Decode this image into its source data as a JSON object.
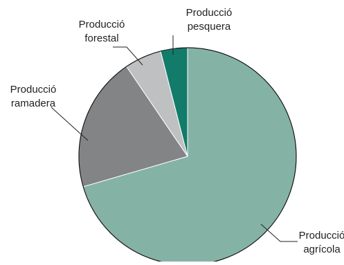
{
  "chart_data": {
    "type": "pie",
    "title": "",
    "slices": [
      {
        "label_lines": [
          "Producció",
          "agrícola"
        ],
        "value": 70.5,
        "color": "#84b3a6"
      },
      {
        "label_lines": [
          "Producció",
          "ramadera"
        ],
        "value": 20.0,
        "color": "#838486"
      },
      {
        "label_lines": [
          "Producció",
          "forestal"
        ],
        "value": 5.5,
        "color": "#bfc0c2"
      },
      {
        "label_lines": [
          "Producció",
          "pesquera"
        ],
        "value": 4.0,
        "color": "#127b6a"
      }
    ],
    "legend": "none"
  }
}
